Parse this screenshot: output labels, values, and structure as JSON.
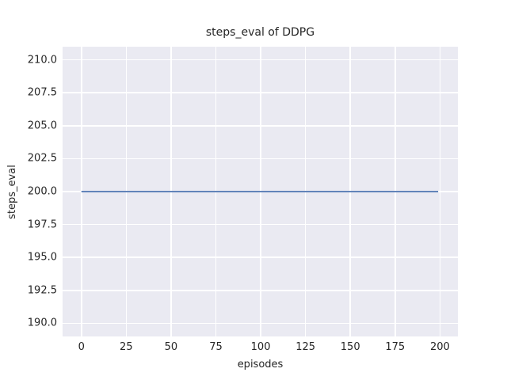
{
  "figure": {
    "background": "#ffffff"
  },
  "chart_data": {
    "type": "line",
    "title": "steps_eval of DDPG",
    "xlabel": "episodes",
    "ylabel": "steps_eval",
    "xlim": [
      -10.5,
      210
    ],
    "ylim": [
      189,
      211
    ],
    "xticks": [
      0,
      25,
      50,
      75,
      100,
      125,
      150,
      175,
      200
    ],
    "xtick_labels": [
      "0",
      "25",
      "50",
      "75",
      "100",
      "125",
      "150",
      "175",
      "200"
    ],
    "yticks": [
      190.0,
      192.5,
      195.0,
      197.5,
      200.0,
      202.5,
      205.0,
      207.5,
      210.0
    ],
    "ytick_labels": [
      "190.0",
      "192.5",
      "195.0",
      "197.5",
      "200.0",
      "202.5",
      "205.0",
      "207.5",
      "210.0"
    ],
    "grid": true,
    "legend": "none",
    "plot_background": "#eaeaf2",
    "gridline_color": "#ffffff",
    "text_color": "#262626",
    "series": [
      {
        "name": "DDPG",
        "color": "#4c72b0",
        "line_width": 1.8,
        "x": [
          0,
          199
        ],
        "y": [
          200,
          200
        ]
      }
    ]
  }
}
